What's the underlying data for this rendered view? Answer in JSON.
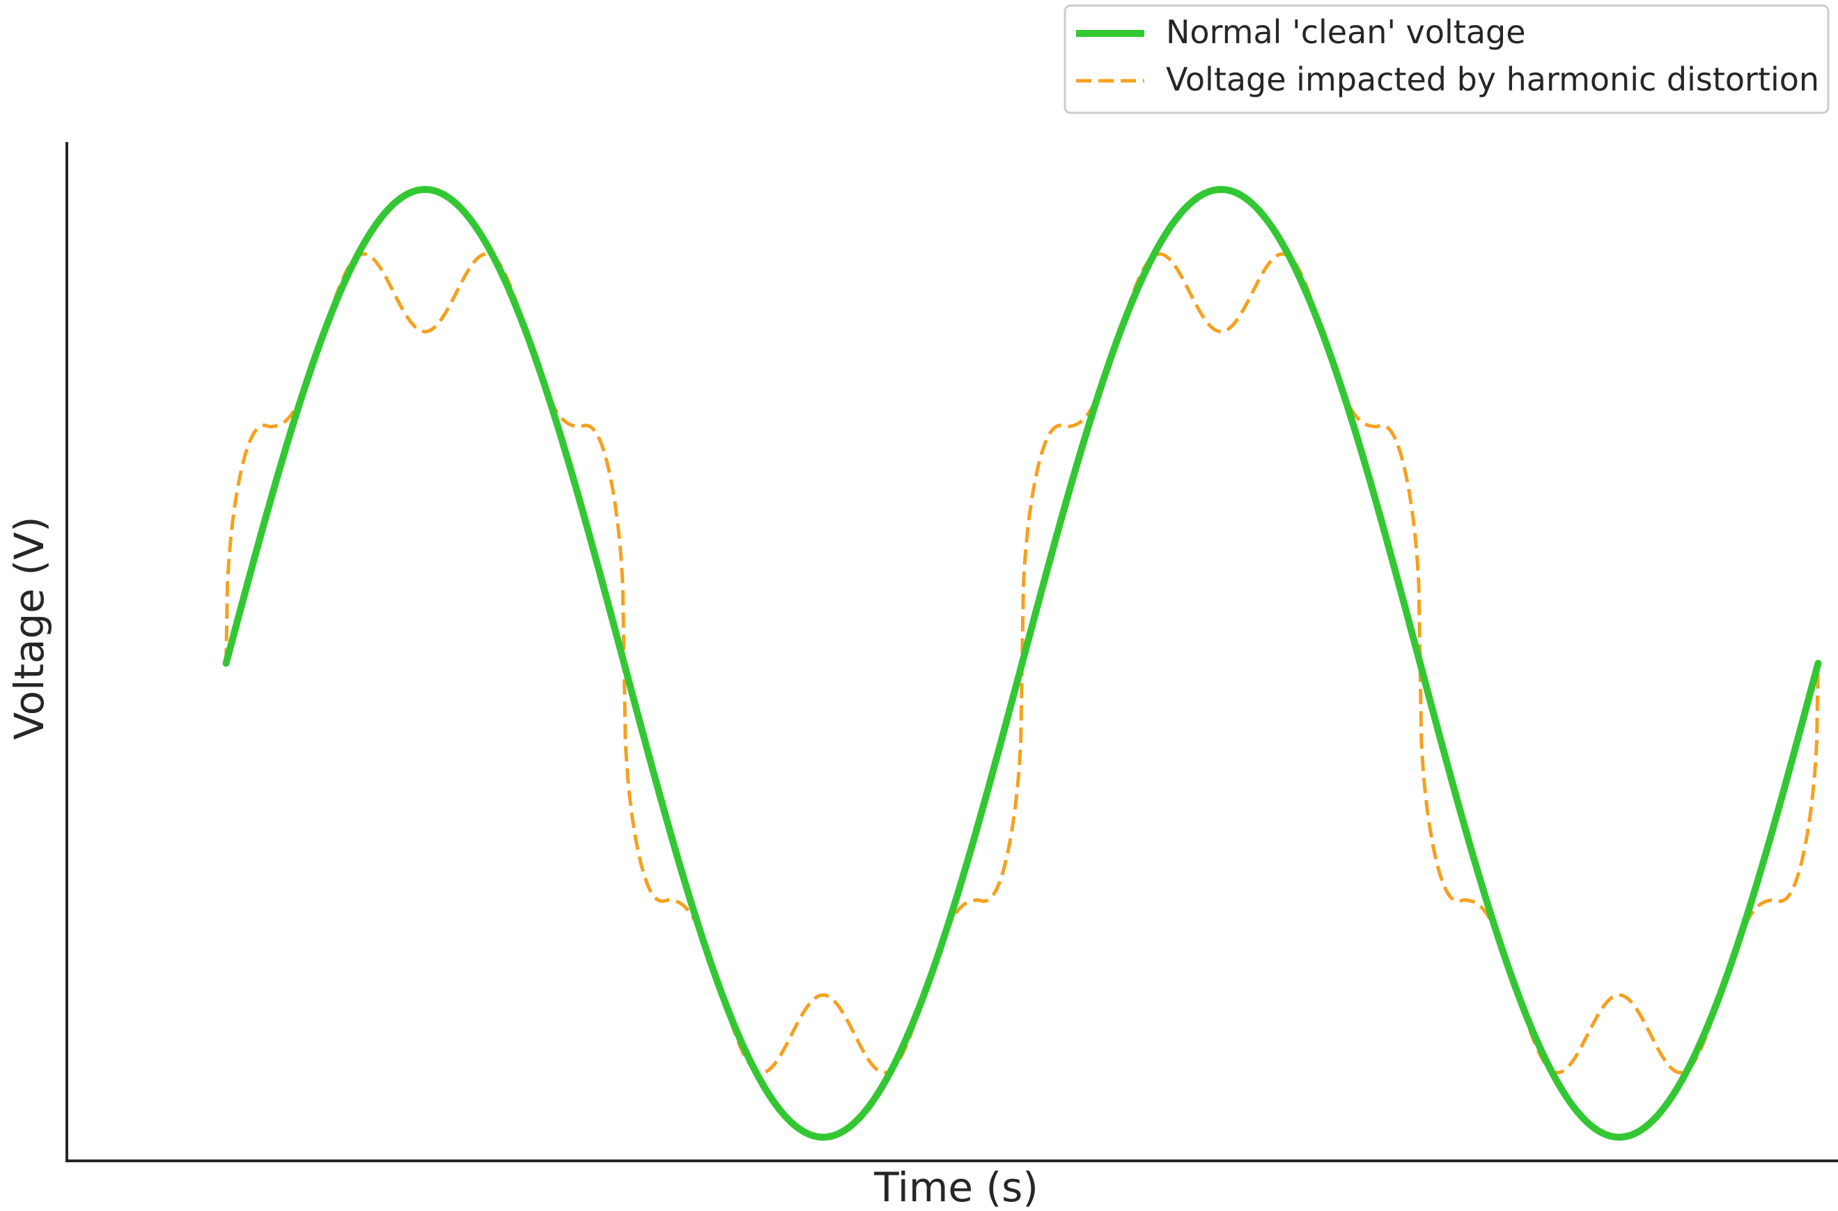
{
  "chart_data": {
    "type": "line",
    "title": "",
    "xlabel": "Time (s)",
    "ylabel": "Voltage (V)",
    "x_ticks": [],
    "y_ticks": [],
    "xlim": [
      -0.004,
      0.0405
    ],
    "ylim": [
      -1.05,
      1.1
    ],
    "grid": false,
    "legend_position": "top-right, above plot",
    "frequency_hz": 50,
    "duration_s": 0.04,
    "series": [
      {
        "name": "Normal 'clean' voltage",
        "color": "#33c833",
        "style": "solid",
        "x": [
          0,
          0.0025,
          0.005,
          0.0075,
          0.01,
          0.0125,
          0.015,
          0.0175,
          0.02,
          0.0225,
          0.025,
          0.0275,
          0.03,
          0.0325,
          0.035,
          0.0375,
          0.04
        ],
        "y": [
          0,
          0.707,
          1,
          0.707,
          0,
          -0.707,
          -1,
          -0.707,
          0,
          0.707,
          1,
          0.707,
          0,
          -0.707,
          -1,
          -0.707,
          0
        ]
      },
      {
        "name": "Voltage impacted by harmonic distortion",
        "color": "#f5a11e",
        "style": "dashed",
        "x": [
          0,
          0.001667,
          0.003333,
          0.005,
          0.006667,
          0.008333,
          0.01,
          0.011667,
          0.013333,
          0.015,
          0.016667,
          0.018333,
          0.02,
          0.021667,
          0.023333,
          0.025,
          0.026667,
          0.028333,
          0.03,
          0.031667,
          0.033333,
          0.035,
          0.036667,
          0.038333,
          0.04
        ],
        "y": [
          0,
          0.9,
          0.7,
          0.9,
          0.7,
          0.9,
          0,
          -0.9,
          -0.7,
          -0.9,
          -0.7,
          -0.9,
          0,
          0.9,
          0.7,
          0.9,
          0.7,
          0.9,
          0,
          -0.9,
          -0.7,
          -0.9,
          -0.7,
          -0.9,
          0
        ]
      }
    ]
  }
}
